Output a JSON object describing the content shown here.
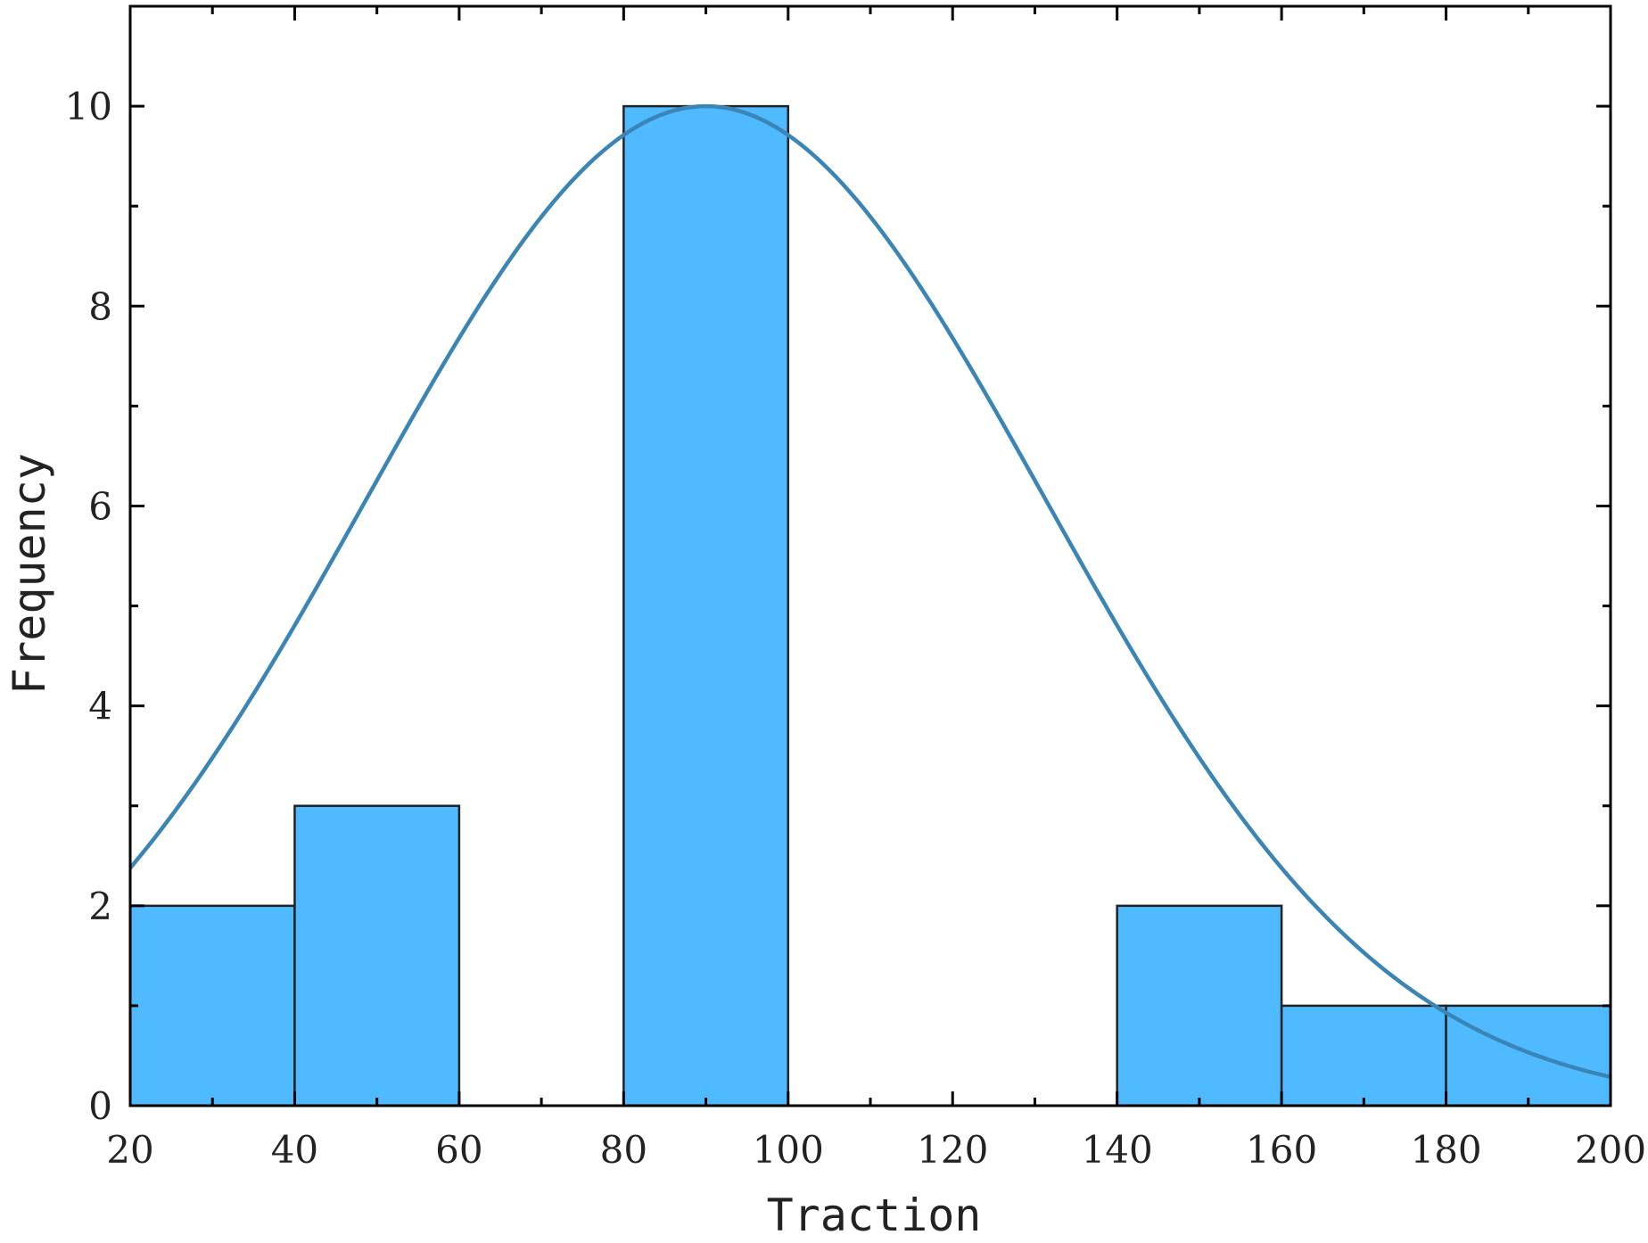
{
  "chart_data": {
    "type": "bar",
    "subtype": "histogram with normal fit curve",
    "title": "",
    "xlabel": "Traction",
    "ylabel": "Frequency",
    "xlim": [
      20,
      200
    ],
    "ylim": [
      0,
      11
    ],
    "x_ticks": [
      "20",
      "40",
      "60",
      "80",
      "100",
      "120",
      "140",
      "160",
      "180",
      "200"
    ],
    "y_ticks": [
      "0",
      "2",
      "4",
      "6",
      "8",
      "10"
    ],
    "bins": [
      {
        "start": 20,
        "end": 40,
        "count": 2
      },
      {
        "start": 40,
        "end": 60,
        "count": 3
      },
      {
        "start": 60,
        "end": 80,
        "count": 0
      },
      {
        "start": 80,
        "end": 100,
        "count": 10
      },
      {
        "start": 100,
        "end": 120,
        "count": 0
      },
      {
        "start": 120,
        "end": 140,
        "count": 0
      },
      {
        "start": 140,
        "end": 160,
        "count": 2
      },
      {
        "start": 160,
        "end": 180,
        "count": 1
      },
      {
        "start": 180,
        "end": 200,
        "count": 1
      }
    ],
    "fit_curve": {
      "type": "normal",
      "peak_x": 90,
      "peak_y": 10,
      "sigma": 41.3
    },
    "grid": false,
    "legend": "none",
    "colors": {
      "bar_fill": "#4FBAFF",
      "bar_edge": "#222222",
      "curve": "#3A85B5",
      "axis": "#000000"
    }
  }
}
